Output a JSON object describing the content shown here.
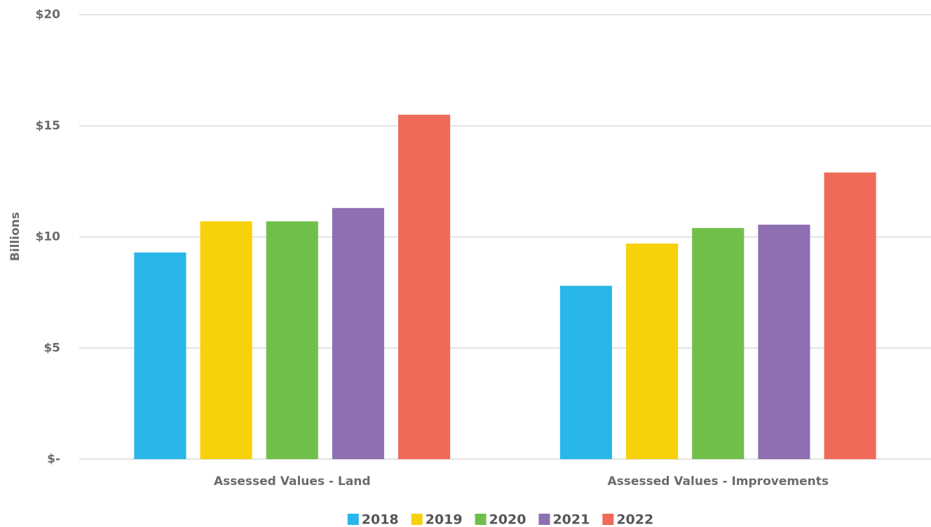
{
  "chart_data": {
    "type": "bar",
    "y_label": "Billions",
    "categories": [
      "Assessed Values - Land",
      "Assessed Values - Improvements"
    ],
    "series": [
      {
        "name": "2018",
        "color": "#29b6e8",
        "values": [
          9.3,
          7.8
        ]
      },
      {
        "name": "2019",
        "color": "#f7d10a",
        "values": [
          10.7,
          9.7
        ]
      },
      {
        "name": "2020",
        "color": "#71bf4b",
        "values": [
          10.7,
          10.4
        ]
      },
      {
        "name": "2021",
        "color": "#8e6fb1",
        "values": [
          11.3,
          10.55
        ]
      },
      {
        "name": "2022",
        "color": "#f06a5a",
        "values": [
          15.5,
          12.9
        ]
      }
    ],
    "ylim": [
      0,
      20
    ],
    "yticks": [
      {
        "value": 0,
        "label": "$-"
      },
      {
        "value": 5,
        "label": "$5"
      },
      {
        "value": 10,
        "label": "$10"
      },
      {
        "value": 15,
        "label": "$15"
      },
      {
        "value": 20,
        "label": "$20"
      }
    ],
    "grid": true,
    "legend": "bottom"
  }
}
